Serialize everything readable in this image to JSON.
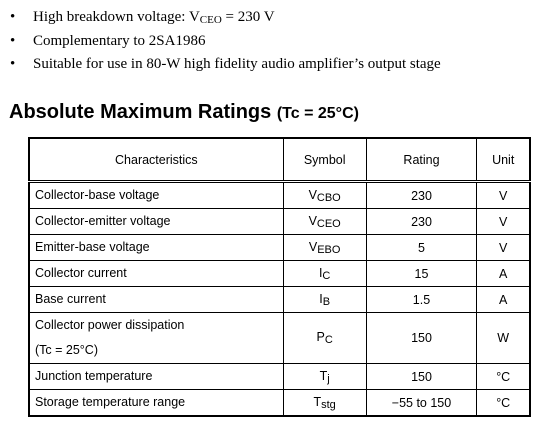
{
  "bullets": [
    {
      "parts": [
        "High breakdown voltage: V",
        "CEO",
        " = 230 V"
      ]
    },
    {
      "parts": [
        "Complementary to 2SA1986"
      ]
    },
    {
      "parts": [
        "Suitable for use in 80-W high fidelity audio amplifier’s output stage"
      ]
    }
  ],
  "section": {
    "title": "Absolute Maximum Ratings",
    "condition": "(Tc = 25°C)"
  },
  "table": {
    "headers": [
      "Characteristics",
      "Symbol",
      "Rating",
      "Unit"
    ],
    "rows": [
      {
        "characteristics": [
          "Collector-base voltage"
        ],
        "symbol": {
          "main": "V",
          "sub": "CBO"
        },
        "rating": "230",
        "unit": "V"
      },
      {
        "characteristics": [
          "Collector-emitter voltage"
        ],
        "symbol": {
          "main": "V",
          "sub": "CEO"
        },
        "rating": "230",
        "unit": "V"
      },
      {
        "characteristics": [
          "Emitter-base voltage"
        ],
        "symbol": {
          "main": "V",
          "sub": "EBO"
        },
        "rating": "5",
        "unit": "V"
      },
      {
        "characteristics": [
          "Collector current"
        ],
        "symbol": {
          "main": "I",
          "sub": "C"
        },
        "rating": "15",
        "unit": "A"
      },
      {
        "characteristics": [
          "Base current"
        ],
        "symbol": {
          "main": "I",
          "sub": "B"
        },
        "rating": "1.5",
        "unit": "A"
      },
      {
        "characteristics": [
          "Collector power dissipation",
          "(Tc = 25°C)"
        ],
        "symbol": {
          "main": "P",
          "sub": "C"
        },
        "rating": "150",
        "unit": "W"
      },
      {
        "characteristics": [
          "Junction temperature"
        ],
        "symbol": {
          "main": "T",
          "sub": "j"
        },
        "rating": "150",
        "unit": "°C"
      },
      {
        "characteristics": [
          "Storage temperature range"
        ],
        "symbol": {
          "main": "T",
          "sub": "stg"
        },
        "rating": "−55 to 150",
        "unit": "°C"
      }
    ]
  }
}
